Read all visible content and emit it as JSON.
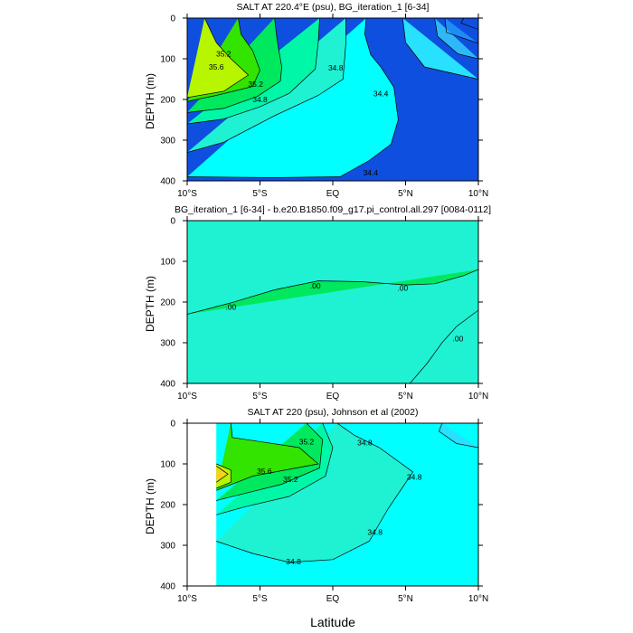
{
  "chart_data": [
    {
      "type": "contour",
      "title": "SALT AT 220.4°E (psu), BG_iteration_1 [6-34]",
      "ylabel": "DEPTH (m)",
      "xlabel": "",
      "x_ticks": [
        "10°S",
        "5°S",
        "EQ",
        "5°N",
        "10°N"
      ],
      "x_tick_values": [
        -10,
        -5,
        0,
        5,
        10
      ],
      "xlim": [
        -10,
        10
      ],
      "y_ticks": [
        "0",
        "100",
        "200",
        "300",
        "400"
      ],
      "y_tick_values": [
        0,
        100,
        200,
        300,
        400
      ],
      "ylim": [
        400,
        0
      ],
      "contour_interval": 0.2,
      "fill_levels": [
        34.0,
        34.2,
        34.4,
        34.6,
        34.8,
        35.0,
        35.2,
        35.4,
        35.6,
        35.8
      ],
      "contour_labels": [
        {
          "text": "35.2",
          "x": -7.5,
          "depth": 88
        },
        {
          "text": "35.6",
          "x": -8.0,
          "depth": 120
        },
        {
          "text": "35.2",
          "x": -5.3,
          "depth": 162
        },
        {
          "text": "34.8",
          "x": -5.0,
          "depth": 200
        },
        {
          "text": "34.8",
          "x": 0.2,
          "depth": 122
        },
        {
          "text": "34.4",
          "x": 3.3,
          "depth": 185
        },
        {
          "text": "34.4",
          "x": 2.6,
          "depth": 380
        }
      ],
      "contours": [
        {
          "level": 34.0,
          "fill": "#0f4fe0",
          "points": [
            [
              9,
              0
            ],
            [
              8.8,
              12
            ],
            [
              10,
              28
            ]
          ]
        },
        {
          "level": 34.2,
          "fill": "#1e8cf5",
          "points": [
            [
              7.7,
              0
            ],
            [
              7.8,
              35
            ],
            [
              10,
              62
            ]
          ]
        },
        {
          "level": 34.4,
          "fill": "#2fb8f8",
          "points": [
            [
              7.0,
              0
            ],
            [
              7.2,
              45
            ],
            [
              8.6,
              88
            ],
            [
              10,
              100
            ]
          ]
        },
        {
          "level": 34.6,
          "fill": "#27e1ff",
          "points": [
            [
              4.8,
              0
            ],
            [
              5.0,
              60
            ],
            [
              6.3,
              120
            ],
            [
              10,
              150
            ]
          ]
        },
        {
          "level": 34.8,
          "fill": "#00ffff",
          "points": [
            [
              2.3,
              0
            ],
            [
              2.2,
              40
            ],
            [
              2.6,
              90
            ],
            [
              3.3,
              120
            ],
            [
              4.2,
              170
            ],
            [
              4.5,
              250
            ],
            [
              4.0,
              310
            ],
            [
              2.5,
              350
            ],
            [
              0.5,
              390
            ],
            [
              -4,
              392
            ],
            [
              -10,
              390
            ]
          ]
        },
        {
          "level": 35.0,
          "fill": "#1ef2d2",
          "points": [
            [
              -10,
              330
            ],
            [
              -7.5,
              305
            ],
            [
              -4,
              240
            ],
            [
              -1,
              190
            ],
            [
              0.7,
              150
            ],
            [
              0.9,
              60
            ],
            [
              0.9,
              0
            ]
          ]
        },
        {
          "level": 35.2,
          "fill": "#00f7a8",
          "points": [
            [
              -10,
              260
            ],
            [
              -7.5,
              248
            ],
            [
              -5,
              218
            ],
            [
              -3,
              185
            ],
            [
              -1.2,
              125
            ],
            [
              -1.0,
              60
            ],
            [
              -0.9,
              0
            ]
          ]
        },
        {
          "level": 35.4,
          "fill": "#00e85d",
          "points": [
            [
              -10,
              232
            ],
            [
              -7.5,
              222
            ],
            [
              -5.2,
              193
            ],
            [
              -3.6,
              155
            ],
            [
              -3.5,
              120
            ],
            [
              -3.8,
              60
            ],
            [
              -4,
              0
            ]
          ]
        },
        {
          "level": 35.6,
          "fill": "#32e400",
          "points": [
            [
              -10,
              205
            ],
            [
              -8,
              190
            ],
            [
              -5.5,
              168
            ],
            [
              -5.0,
              128
            ],
            [
              -5.5,
              80
            ],
            [
              -6.3,
              40
            ],
            [
              -6.5,
              0
            ]
          ]
        },
        {
          "level": 35.8,
          "fill": "#b7f500",
          "points": [
            [
              -10,
              195
            ],
            [
              -7.5,
              180
            ],
            [
              -5.8,
              140
            ],
            [
              -7.0,
              100
            ],
            [
              -8.0,
              60
            ],
            [
              -8.8,
              0
            ]
          ]
        }
      ]
    },
    {
      "type": "contour",
      "title": "BG_iteration_1 [6-34] - b.e20.B1850.f09_g17.pi_control.all.297 [0084-0112]",
      "ylabel": "DEPTH (m)",
      "xlabel": "",
      "x_ticks": [
        "10°S",
        "5°S",
        "EQ",
        "5°N",
        "10°N"
      ],
      "x_tick_values": [
        -10,
        -5,
        0,
        5,
        10
      ],
      "xlim": [
        -10,
        10
      ],
      "y_ticks": [
        "0",
        "100",
        "200",
        "300",
        "400"
      ],
      "y_tick_values": [
        0,
        100,
        200,
        300,
        400
      ],
      "ylim": [
        400,
        0
      ],
      "background_fill": "#1ef2d2",
      "contour_labels": [
        {
          "text": ".00",
          "x": -7.0,
          "depth": 212
        },
        {
          "text": ".00",
          "x": -1.2,
          "depth": 160
        },
        {
          "text": ".00",
          "x": 4.8,
          "depth": 165
        },
        {
          "text": ".00",
          "x": 8.6,
          "depth": 290
        }
      ],
      "contours": [
        {
          "level": 0.0,
          "fill": "#00e85d",
          "points": [
            [
              -10,
              230
            ],
            [
              -7,
              202
            ],
            [
              -4,
              170
            ],
            [
              -1,
              148
            ],
            [
              2,
              150
            ],
            [
              5,
              158
            ],
            [
              7,
              155
            ],
            [
              9,
              135
            ],
            [
              10,
              120
            ]
          ]
        },
        {
          "level": 0.0,
          "fill": "#1ef2d2",
          "points": [
            [
              10,
              220
            ],
            [
              8.5,
              260
            ],
            [
              7.5,
              300
            ],
            [
              6.5,
              350
            ],
            [
              5.3,
              400
            ]
          ]
        }
      ]
    },
    {
      "type": "contour",
      "title": "SALT AT 220 (psu), Johnson et al (2002)",
      "ylabel": "DEPTH (m)",
      "xlabel": "Latitude",
      "x_ticks": [
        "10°S",
        "5°S",
        "EQ",
        "5°N",
        "10°N"
      ],
      "x_tick_values": [
        -10,
        -5,
        0,
        5,
        10
      ],
      "xlim": [
        -10,
        10
      ],
      "y_ticks": [
        "0",
        "100",
        "200",
        "300",
        "400"
      ],
      "y_tick_values": [
        0,
        100,
        200,
        300,
        400
      ],
      "ylim": [
        400,
        0
      ],
      "data_x_range": [
        -8.0,
        10
      ],
      "background_fill": "#00ffff",
      "contour_labels": [
        {
          "text": "35.2",
          "x": -1.8,
          "depth": 45
        },
        {
          "text": "35.6",
          "x": -4.7,
          "depth": 118
        },
        {
          "text": "35.2",
          "x": -2.9,
          "depth": 138
        },
        {
          "text": "34.8",
          "x": 2.2,
          "depth": 48
        },
        {
          "text": "34.8",
          "x": 5.6,
          "depth": 132
        },
        {
          "text": "34.8",
          "x": 2.9,
          "depth": 268
        },
        {
          "text": "34.8",
          "x": -2.7,
          "depth": 340
        }
      ],
      "contours": [
        {
          "level": 34.8,
          "fill": "#1ef2d2",
          "points": [
            [
              0.3,
              0
            ],
            [
              1.5,
              30
            ],
            [
              3.2,
              60
            ],
            [
              5.5,
              120
            ],
            [
              3.8,
              210
            ],
            [
              2.5,
              290
            ],
            [
              0,
              335
            ],
            [
              -3,
              342
            ],
            [
              -5.5,
              320
            ],
            [
              -8,
              290
            ]
          ]
        },
        {
          "level": 35.0,
          "fill": "#00f7a8",
          "points": [
            [
              -0.7,
              0
            ],
            [
              0,
              60
            ],
            [
              -0.5,
              130
            ],
            [
              -3,
              180
            ],
            [
              -6,
              205
            ],
            [
              -8,
              225
            ]
          ]
        },
        {
          "level": 35.2,
          "fill": "#00e85d",
          "points": [
            [
              -1.8,
              0
            ],
            [
              -0.7,
              40
            ],
            [
              -0.9,
              110
            ],
            [
              -3.5,
              150
            ],
            [
              -8,
              190
            ]
          ]
        },
        {
          "level": 35.4,
          "fill": "#32e400",
          "points": [
            [
              -7.0,
              0
            ],
            [
              -6.9,
              35
            ],
            [
              -5,
              45
            ],
            [
              -2.3,
              60
            ],
            [
              -1.0,
              100
            ],
            [
              -5.5,
              130
            ],
            [
              -8,
              165
            ]
          ]
        },
        {
          "level": 35.6,
          "fill": "#b7f500",
          "points": [
            [
              -8,
              100
            ],
            [
              -7.0,
              115
            ],
            [
              -7.0,
              145
            ],
            [
              -8,
              160
            ]
          ]
        },
        {
          "level": 35.8,
          "fill": "#f5d21e",
          "points": [
            [
              -8,
              105
            ],
            [
              -7.2,
              125
            ],
            [
              -8,
              145
            ]
          ]
        },
        {
          "level": 34.6,
          "fill": "#27e1ff",
          "points": [
            [
              7.5,
              0
            ],
            [
              7.3,
              20
            ],
            [
              8.5,
              50
            ],
            [
              10,
              60
            ]
          ]
        }
      ]
    }
  ]
}
